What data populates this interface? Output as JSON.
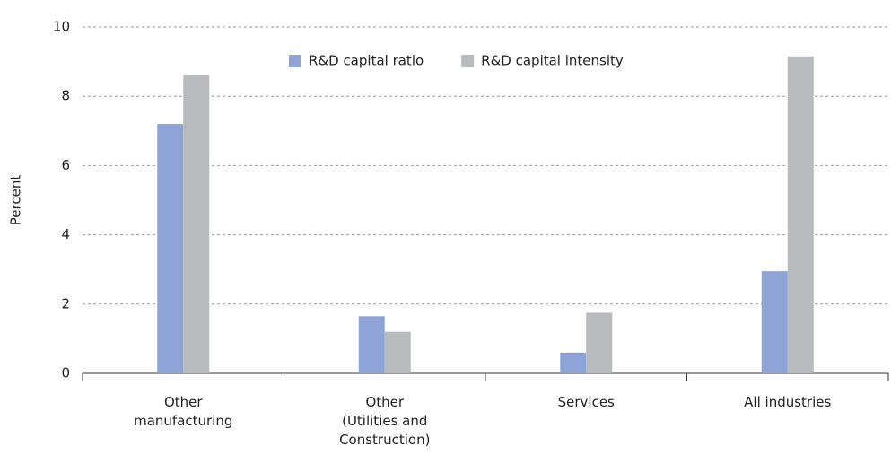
{
  "chart_data": {
    "type": "bar",
    "y_label": "Percent",
    "categories": [
      "Other\nmanufacturing",
      "Other\n(Utilities and\nConstruction)",
      "Services",
      "All industries"
    ],
    "series": [
      {
        "name": "R&D capital ratio",
        "color": "#8fa4d6",
        "values": [
          7.2,
          1.65,
          0.6,
          2.95
        ]
      },
      {
        "name": "R&D capital intensity",
        "color": "#b9babe",
        "values": [
          8.6,
          1.2,
          1.75,
          9.15
        ]
      }
    ],
    "ylim": [
      0,
      10
    ],
    "yticks": [
      0,
      2,
      4,
      6,
      8,
      10
    ],
    "grid": true,
    "legend": "top"
  }
}
